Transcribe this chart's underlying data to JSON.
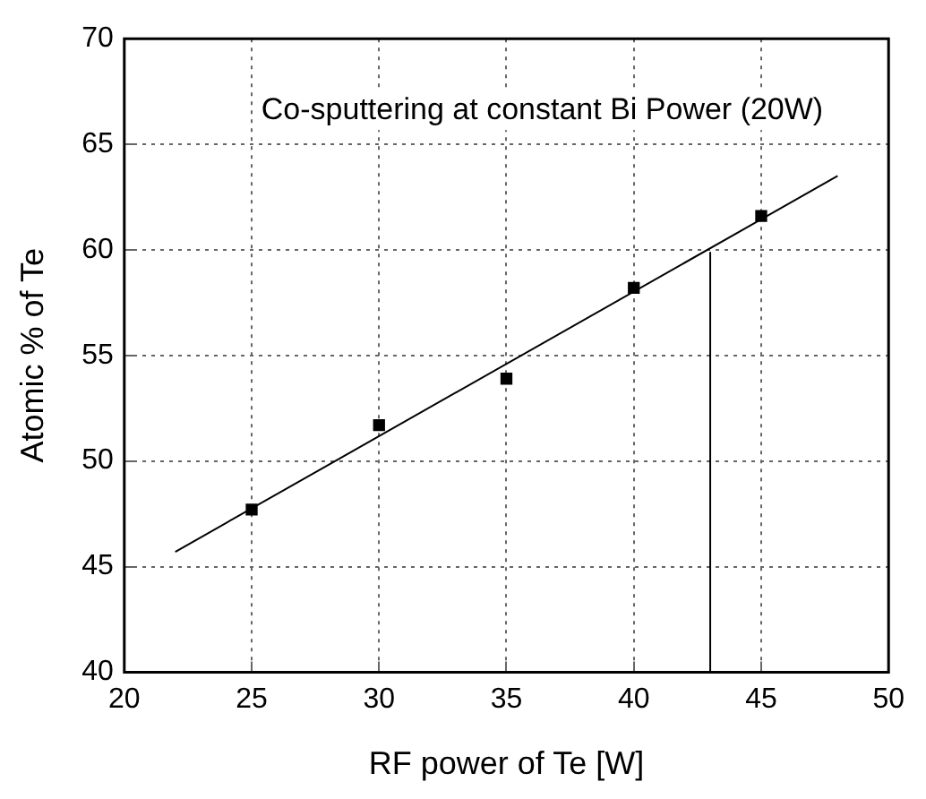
{
  "chart_data": {
    "type": "scatter",
    "xlabel": "RF power of Te [W]",
    "ylabel": "Atomic % of Te",
    "annotations": [
      "Co-sputtering at constant Bi Power (20W)"
    ],
    "xlim": [
      20,
      50
    ],
    "xticks": [
      20,
      25,
      30,
      35,
      40,
      45,
      50
    ],
    "ylim": [
      40,
      70
    ],
    "yticks": [
      40,
      45,
      50,
      55,
      60,
      65,
      70
    ],
    "grid": true,
    "marker": "square",
    "series": [
      {
        "type": "scatter",
        "color": "#000000",
        "x": [
          25,
          30,
          35,
          40,
          45
        ],
        "values": [
          47.7,
          51.7,
          53.9,
          58.2,
          61.6
        ]
      },
      {
        "type": "line",
        "color": "#000000",
        "x": [
          22,
          48
        ],
        "values": [
          45.7,
          63.5
        ],
        "marker": "none"
      },
      {
        "type": "line",
        "color": "#000000",
        "x": [
          43,
          43
        ],
        "values": [
          40,
          59.9
        ],
        "marker": "none"
      }
    ]
  }
}
